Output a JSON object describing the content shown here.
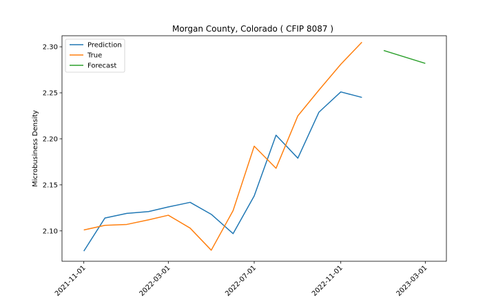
{
  "chart_data": {
    "type": "line",
    "title": "Morgan County, Colorado ( CFIP 8087 )",
    "xlabel": "",
    "ylabel": "Microbusiness Density",
    "x_ticks": [
      "2021-11-01",
      "2022-03-01",
      "2022-07-01",
      "2022-11-01",
      "2023-03-01"
    ],
    "y_ticks": [
      "2.10",
      "2.15",
      "2.20",
      "2.25",
      "2.30"
    ],
    "xlim": [
      "2021-10-01",
      "2023-03-31"
    ],
    "ylim": [
      2.067,
      2.312
    ],
    "legend_position": "top-left",
    "grid": false,
    "series": [
      {
        "name": "Prediction",
        "color": "#1f77b4",
        "x": [
          "2021-11-01",
          "2021-12-01",
          "2022-01-01",
          "2022-02-01",
          "2022-03-01",
          "2022-04-01",
          "2022-05-01",
          "2022-06-01",
          "2022-07-01",
          "2022-08-01",
          "2022-09-01",
          "2022-10-01",
          "2022-11-01",
          "2022-12-01"
        ],
        "values": [
          2.078,
          2.114,
          2.119,
          2.121,
          2.126,
          2.131,
          2.118,
          2.097,
          2.138,
          2.204,
          2.179,
          2.229,
          2.251,
          2.245
        ]
      },
      {
        "name": "True",
        "color": "#ff7f0e",
        "x": [
          "2021-11-01",
          "2021-12-01",
          "2022-01-01",
          "2022-02-01",
          "2022-03-01",
          "2022-04-01",
          "2022-05-01",
          "2022-06-01",
          "2022-07-01",
          "2022-08-01",
          "2022-09-01",
          "2022-10-01",
          "2022-11-01",
          "2022-12-01"
        ],
        "values": [
          2.101,
          2.106,
          2.107,
          2.112,
          2.117,
          2.103,
          2.079,
          2.122,
          2.192,
          2.168,
          2.225,
          2.253,
          2.281,
          2.305
        ]
      },
      {
        "name": "Forecast",
        "color": "#2ca02c",
        "x": [
          "2023-01-01",
          "2023-03-01"
        ],
        "values": [
          2.296,
          2.282
        ]
      }
    ]
  }
}
